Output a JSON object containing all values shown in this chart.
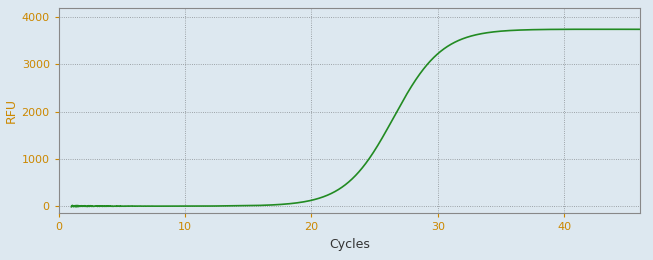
{
  "xlabel": "Cycles",
  "ylabel": "RFU",
  "xlim": [
    0,
    46
  ],
  "ylim": [
    -150,
    4200
  ],
  "yticks": [
    0,
    1000,
    2000,
    3000,
    4000
  ],
  "xticks": [
    0,
    10,
    20,
    30,
    40
  ],
  "tick_label_color": "#cc8800",
  "line_color": "#228B22",
  "line_width": 1.2,
  "background_color": "#dde8f0",
  "plot_bg_color": "#dde8f0",
  "grid_color": "#333333",
  "grid_alpha": 0.5,
  "sigmoid_L": 3750,
  "sigmoid_k": 0.52,
  "sigmoid_x0": 26.5,
  "x_start": 1,
  "x_end": 46,
  "ylabel_color": "#cc8800",
  "xlabel_color": "#333333",
  "spine_color": "#888888",
  "label_fontsize": 9,
  "tick_fontsize": 8
}
